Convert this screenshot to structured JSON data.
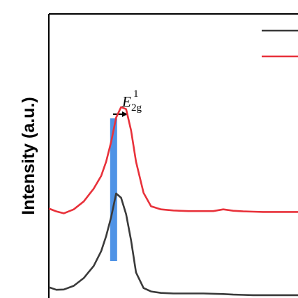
{
  "chart_data": {
    "type": "line",
    "ylabel": "Intensity (a.u.)",
    "xlabel": "",
    "title": "",
    "grid": false,
    "legend": "top-right",
    "xlim": [
      0,
      100
    ],
    "ylim": [
      0,
      100
    ],
    "annotation": {
      "label_main": "E",
      "label_sub": "2g",
      "label_sup": "1",
      "band_x": 26,
      "arrow": "→"
    },
    "series": [
      {
        "color": "#e8313a",
        "x": [
          0,
          3,
          6,
          10,
          14,
          18,
          21,
          23,
          25,
          27,
          29,
          31,
          33,
          35,
          38,
          41,
          45,
          50,
          56,
          62,
          66,
          70,
          74,
          78,
          82,
          86,
          90,
          95,
          100
        ],
        "values": [
          31.5,
          30.5,
          29.8,
          31.2,
          34.0,
          38.5,
          43.0,
          48.0,
          55.0,
          63.5,
          67.2,
          66.5,
          59.0,
          48.0,
          37.0,
          32.3,
          31.2,
          30.8,
          30.6,
          30.6,
          30.6,
          31.2,
          30.7,
          30.5,
          30.4,
          30.3,
          30.3,
          30.3,
          30.3
        ]
      },
      {
        "color": "#3a3a3a",
        "x": [
          0,
          3,
          6,
          10,
          14,
          18,
          21,
          23,
          25,
          27,
          29,
          31,
          33,
          35,
          38,
          41,
          45,
          50,
          56,
          62,
          66,
          70,
          74,
          78,
          82,
          86,
          90,
          95,
          100
        ],
        "values": [
          3.8,
          2.9,
          3.0,
          4.3,
          7.0,
          11.3,
          16.5,
          21.8,
          28.5,
          36.8,
          35.3,
          29.5,
          20.3,
          9.0,
          3.5,
          2.3,
          1.8,
          1.6,
          1.6,
          1.6,
          1.5,
          1.4,
          1.2,
          1.1,
          1.0,
          1.0,
          1.0,
          1.0,
          1.0
        ]
      }
    ]
  }
}
